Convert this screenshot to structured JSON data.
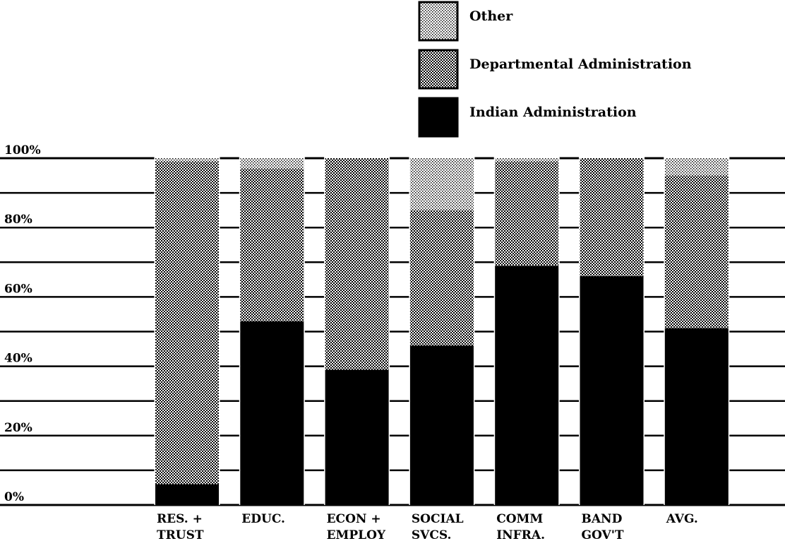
{
  "chart_data": {
    "type": "bar",
    "stacked": true,
    "title": "",
    "xlabel": "",
    "ylabel": "",
    "ylim": [
      0,
      100
    ],
    "yticks": [
      "0%",
      "20%",
      "40%",
      "60%",
      "80%",
      "100%"
    ],
    "grid": true,
    "legend_position": "top-right",
    "categories": [
      [
        "RES. +",
        "TRUST"
      ],
      [
        "EDUC."
      ],
      [
        "ECON +",
        "EMPLOY"
      ],
      [
        "SOCIAL",
        "SVCS."
      ],
      [
        "COMM",
        "INFRA."
      ],
      [
        "BAND",
        "GOV'T"
      ],
      [
        "AVG."
      ]
    ],
    "series": [
      {
        "name": "Indian Administration",
        "values": [
          6,
          53,
          39,
          46,
          69,
          66,
          51
        ],
        "pattern": "solid-black"
      },
      {
        "name": "Departmental Administration",
        "values": [
          93,
          44,
          61,
          39,
          30,
          34,
          44
        ],
        "pattern": "dense-dots"
      },
      {
        "name": "Other",
        "values": [
          1,
          3,
          0,
          15,
          1,
          0,
          5
        ],
        "pattern": "light-dots"
      }
    ],
    "legend_order": [
      "Other",
      "Departmental Administration",
      "Indian Administration"
    ]
  },
  "colors": {
    "ink": "#000000",
    "paper": "#ffffff"
  }
}
